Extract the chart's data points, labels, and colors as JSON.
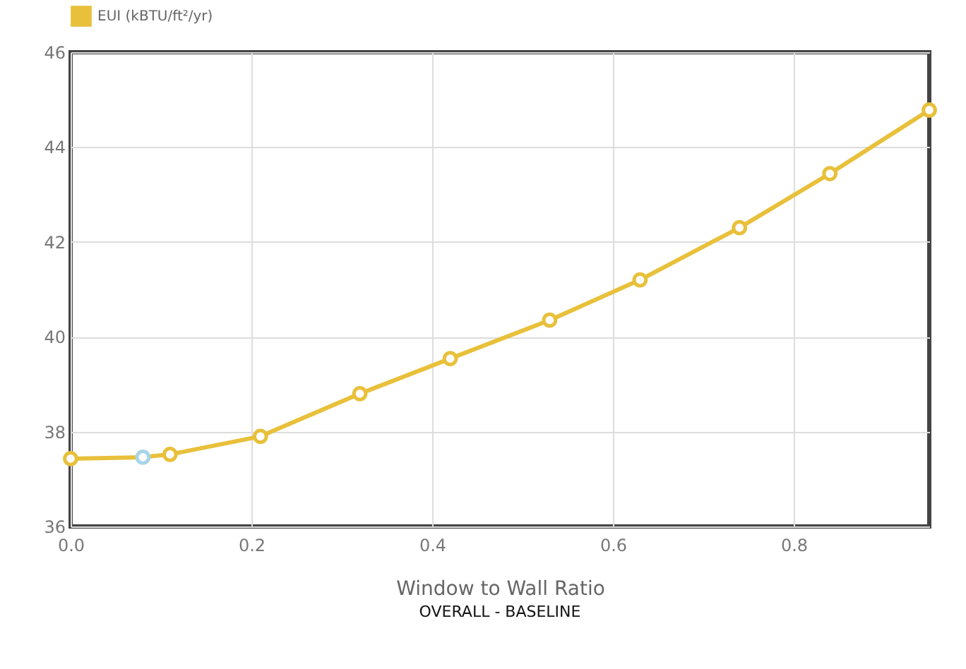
{
  "chart_data": {
    "type": "line",
    "xlabel": "Window to Wall Ratio",
    "annotations": [
      "OVERALL - BASELINE"
    ],
    "x": [
      0,
      0.08,
      0.11,
      0.21,
      0.32,
      0.42,
      0.53,
      0.63,
      0.74,
      0.84,
      0.95
    ],
    "series": [
      {
        "name": "EUI (kBTU/ft²/yr)",
        "color": "#e8c03a",
        "colors": [
          "#e8c03a",
          "#a8d4e6",
          "#e8c03a",
          "#e8c03a",
          "#e8c03a",
          "#e8c03a",
          "#e8c03a",
          "#e8c03a",
          "#e8c03a",
          "#e8c03a",
          "#e8c03a"
        ],
        "values": [
          37.43,
          37.46,
          37.52,
          37.9,
          38.8,
          39.54,
          40.35,
          41.2,
          42.3,
          43.44,
          44.78
        ]
      }
    ],
    "xlim": [
      0,
      0.95
    ],
    "xticks": [
      {
        "value": 0,
        "label": "0.0"
      },
      {
        "value": 0.2,
        "label": "0.2"
      },
      {
        "value": 0.4,
        "label": "0.4"
      },
      {
        "value": 0.6,
        "label": "0.6"
      },
      {
        "value": 0.8,
        "label": "0.8"
      }
    ],
    "ylim": [
      36,
      46
    ],
    "yticks": [
      36,
      38,
      40,
      42,
      44,
      46
    ],
    "grid": true,
    "legend": "top left",
    "marker": "circle",
    "line_style": "solid"
  }
}
